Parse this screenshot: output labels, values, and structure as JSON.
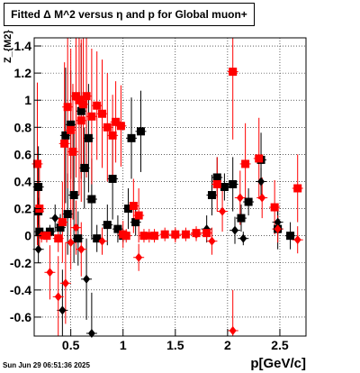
{
  "title": "Fitted Δ M^2 versus η and p for Global muon+",
  "timestamp": "Sun Jun 29 06:51:36 2025",
  "chart_data": {
    "type": "scatter",
    "title": "Fitted Δ M^2 versus η and p for Global muon+",
    "xlabel": "p[GeV/c]",
    "ylabel": "Z_{M2}",
    "xlim": [
      0.15,
      2.75
    ],
    "ylim": [
      -0.74,
      1.46
    ],
    "x_ticks": [
      "0.5",
      "1",
      "1.5",
      "2",
      "2.5"
    ],
    "y_ticks": [
      "-0.6",
      "-0.4",
      "-0.2",
      "0",
      "0.2",
      "0.4",
      "0.6",
      "0.8",
      "1",
      "1.2",
      "1.4"
    ],
    "grid": true,
    "series": [
      {
        "marker": "square",
        "color": "#000000",
        "points": [
          {
            "x": 0.19,
            "y": 0.36,
            "e": 0.3
          },
          {
            "x": 0.19,
            "y": 0.18,
            "e": 0.1
          },
          {
            "x": 0.2,
            "y": 0.03,
            "e": 0.05
          },
          {
            "x": 0.3,
            "y": 0.03,
            "e": 0.05
          },
          {
            "x": 0.4,
            "y": 0.06,
            "e": 0.1
          },
          {
            "x": 0.45,
            "y": 0.74,
            "e": 0.5
          },
          {
            "x": 0.47,
            "y": 0.16,
            "e": 0.3
          },
          {
            "x": 0.5,
            "y": 0.82,
            "e": 0.4
          },
          {
            "x": 0.53,
            "y": 0.3,
            "e": 0.5
          },
          {
            "x": 0.57,
            "y": -0.02,
            "e": 0.2
          },
          {
            "x": 0.6,
            "y": 0.92,
            "e": 0.5
          },
          {
            "x": 0.63,
            "y": 0.5,
            "e": 0.3
          },
          {
            "x": 0.67,
            "y": 0.72,
            "e": 0.4
          },
          {
            "x": 0.7,
            "y": 0.27,
            "e": 0.3
          },
          {
            "x": 0.75,
            "y": -0.02,
            "e": 0.1
          },
          {
            "x": 0.85,
            "y": 0.08,
            "e": 0.15
          },
          {
            "x": 0.9,
            "y": 0.42,
            "e": 0.3
          },
          {
            "x": 0.95,
            "y": 0.05,
            "e": 0.1
          },
          {
            "x": 1.0,
            "y": 0.0,
            "e": 0.05
          },
          {
            "x": 1.05,
            "y": 0.2,
            "e": 0.15
          },
          {
            "x": 1.08,
            "y": 0.72,
            "e": 0.3
          },
          {
            "x": 1.12,
            "y": 0.1,
            "e": 0.1
          },
          {
            "x": 1.17,
            "y": 0.77,
            "e": 0.3
          },
          {
            "x": 1.85,
            "y": 0.3,
            "e": 0.15
          },
          {
            "x": 1.9,
            "y": 0.43,
            "e": 0.15
          },
          {
            "x": 1.97,
            "y": 0.36,
            "e": 0.1
          },
          {
            "x": 2.05,
            "y": 0.38,
            "e": 0.2
          },
          {
            "x": 2.13,
            "y": 0.13,
            "e": 0.1
          },
          {
            "x": 2.2,
            "y": 0.25,
            "e": 0.1
          },
          {
            "x": 2.32,
            "y": 0.56,
            "e": 0.2
          },
          {
            "x": 2.48,
            "y": 0.05,
            "e": 0.15
          },
          {
            "x": 2.6,
            "y": 0.0,
            "e": 0.1
          }
        ]
      },
      {
        "marker": "diamond",
        "color": "#000000",
        "points": [
          {
            "x": 0.19,
            "y": -0.1,
            "e": 0.1
          },
          {
            "x": 0.35,
            "y": 0.13,
            "e": 0.1
          },
          {
            "x": 0.42,
            "y": -0.55,
            "e": 0.3
          },
          {
            "x": 0.65,
            "y": -0.32,
            "e": 0.3
          },
          {
            "x": 0.7,
            "y": -0.72,
            "e": 0.3
          },
          {
            "x": 1.8,
            "y": 0.05,
            "e": 0.1
          },
          {
            "x": 2.07,
            "y": 0.04,
            "e": 0.1
          },
          {
            "x": 2.15,
            "y": -0.02,
            "e": 0.05
          },
          {
            "x": 2.32,
            "y": 0.4,
            "e": 0.1
          },
          {
            "x": 2.48,
            "y": 0.1,
            "e": 0.1
          }
        ]
      },
      {
        "marker": "square",
        "color": "#ff0000",
        "points": [
          {
            "x": 0.18,
            "y": 0.53,
            "e": 0.6
          },
          {
            "x": 0.2,
            "y": 0.2,
            "e": 0.3
          },
          {
            "x": 0.27,
            "y": 0.0,
            "e": 0.05
          },
          {
            "x": 0.38,
            "y": -0.02,
            "e": 0.1
          },
          {
            "x": 0.42,
            "y": 0.1,
            "e": 0.3
          },
          {
            "x": 0.44,
            "y": 0.68,
            "e": 0.6
          },
          {
            "x": 0.47,
            "y": 0.95,
            "e": 0.6
          },
          {
            "x": 0.5,
            "y": 0.78,
            "e": 0.6
          },
          {
            "x": 0.52,
            "y": 0.62,
            "e": 0.5
          },
          {
            "x": 0.55,
            "y": 1.03,
            "e": 0.6
          },
          {
            "x": 0.58,
            "y": 1.0,
            "e": 0.7
          },
          {
            "x": 0.6,
            "y": 0.85,
            "e": 0.6
          },
          {
            "x": 0.62,
            "y": 0.97,
            "e": 0.5
          },
          {
            "x": 0.65,
            "y": 1.03,
            "e": 0.6
          },
          {
            "x": 0.7,
            "y": 0.88,
            "e": 0.5
          },
          {
            "x": 0.75,
            "y": 0.96,
            "e": 0.4
          },
          {
            "x": 0.8,
            "y": 0.9,
            "e": 0.4
          },
          {
            "x": 0.85,
            "y": 0.8,
            "e": 0.4
          },
          {
            "x": 0.9,
            "y": 0.74,
            "e": 0.3
          },
          {
            "x": 0.93,
            "y": 0.84,
            "e": 0.3
          },
          {
            "x": 0.98,
            "y": 0.81,
            "e": 0.3
          },
          {
            "x": 1.0,
            "y": 0.01,
            "e": 0.1
          },
          {
            "x": 1.03,
            "y": 0.0,
            "e": 0.05
          },
          {
            "x": 1.1,
            "y": 0.22,
            "e": 0.2
          },
          {
            "x": 1.15,
            "y": 0.15,
            "e": 0.2
          },
          {
            "x": 1.2,
            "y": 0.0,
            "e": 0.05
          },
          {
            "x": 1.3,
            "y": 0.0,
            "e": 0.05
          },
          {
            "x": 1.4,
            "y": 0.01,
            "e": 0.05
          },
          {
            "x": 1.5,
            "y": 0.01,
            "e": 0.05
          },
          {
            "x": 1.6,
            "y": 0.01,
            "e": 0.05
          },
          {
            "x": 1.7,
            "y": 0.02,
            "e": 0.05
          },
          {
            "x": 1.8,
            "y": 0.02,
            "e": 0.05
          },
          {
            "x": 1.9,
            "y": 0.38,
            "e": 0.2
          },
          {
            "x": 2.05,
            "y": 1.21,
            "e": 0.5
          },
          {
            "x": 2.17,
            "y": 0.53,
            "e": 0.3
          },
          {
            "x": 2.3,
            "y": 0.57,
            "e": 0.3
          },
          {
            "x": 2.45,
            "y": 0.21,
            "e": 0.2
          },
          {
            "x": 2.67,
            "y": 0.35,
            "e": 0.25
          }
        ]
      },
      {
        "marker": "diamond",
        "color": "#ff0000",
        "points": [
          {
            "x": 0.22,
            "y": 0.0,
            "e": 0.05
          },
          {
            "x": 0.3,
            "y": -0.27,
            "e": 0.2
          },
          {
            "x": 0.38,
            "y": -0.45,
            "e": 0.3
          },
          {
            "x": 0.45,
            "y": -0.35,
            "e": 0.3
          },
          {
            "x": 0.5,
            "y": -0.05,
            "e": 0.2
          },
          {
            "x": 0.55,
            "y": 0.06,
            "e": 0.2
          },
          {
            "x": 0.6,
            "y": -0.1,
            "e": 0.2
          },
          {
            "x": 0.8,
            "y": -0.04,
            "e": 0.1
          },
          {
            "x": 1.15,
            "y": -0.16,
            "e": 0.1
          },
          {
            "x": 1.25,
            "y": 0.0,
            "e": 0.05
          },
          {
            "x": 1.5,
            "y": 0.0,
            "e": 0.05
          },
          {
            "x": 1.7,
            "y": 0.01,
            "e": 0.05
          },
          {
            "x": 1.85,
            "y": -0.04,
            "e": 0.1
          },
          {
            "x": 1.95,
            "y": 0.18,
            "e": 0.15
          },
          {
            "x": 2.05,
            "y": -0.7,
            "e": 0.3
          },
          {
            "x": 2.12,
            "y": 0.28,
            "e": 0.2
          },
          {
            "x": 2.33,
            "y": 0.28,
            "e": 0.15
          },
          {
            "x": 2.48,
            "y": 0.05,
            "e": 0.1
          },
          {
            "x": 2.67,
            "y": -0.03,
            "e": 0.1
          }
        ]
      }
    ]
  }
}
